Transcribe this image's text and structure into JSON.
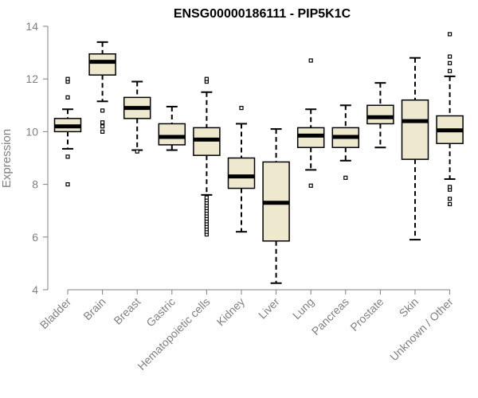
{
  "chart_data": {
    "type": "box",
    "title": "ENSG00000186111 - PIP5K1C",
    "xlabel": "",
    "ylabel": "Expression",
    "ylim": [
      4,
      14
    ],
    "yticks": [
      4,
      6,
      8,
      10,
      12,
      14
    ],
    "grid": false,
    "legend": "none",
    "box_fill": "#eee8cf",
    "box_stroke": "#000000",
    "median_color": "#000000",
    "axis_color": "#808080",
    "categories": [
      "Bladder",
      "Brain",
      "Breast",
      "Gastric",
      "Hematopoietic cells",
      "Kidney",
      "Liver",
      "Lung",
      "Pancreas",
      "Prostate",
      "Skin",
      "Unknown / Other"
    ],
    "boxes": [
      {
        "category": "Bladder",
        "whisker_low": 9.35,
        "q1": 10.0,
        "median": 10.2,
        "q3": 10.5,
        "whisker_high": 10.85,
        "outliers": [
          8.0,
          9.05,
          11.3,
          11.9,
          12.0
        ]
      },
      {
        "category": "Brain",
        "whisker_low": 11.15,
        "q1": 12.15,
        "median": 12.65,
        "q3": 12.95,
        "whisker_high": 13.4,
        "outliers": [
          10.0,
          10.2,
          10.35,
          10.8
        ]
      },
      {
        "category": "Breast",
        "whisker_low": 9.3,
        "q1": 10.5,
        "median": 10.9,
        "q3": 11.3,
        "whisker_high": 11.9,
        "outliers": [
          9.25
        ]
      },
      {
        "category": "Gastric",
        "whisker_low": 9.3,
        "q1": 9.5,
        "median": 9.8,
        "q3": 10.3,
        "whisker_high": 10.95,
        "outliers": []
      },
      {
        "category": "Hematopoietic cells",
        "whisker_low": 7.6,
        "q1": 9.1,
        "median": 9.7,
        "q3": 10.15,
        "whisker_high": 11.5,
        "outliers": [
          6.1,
          6.2,
          6.3,
          6.4,
          6.5,
          6.6,
          6.7,
          6.8,
          6.9,
          7.0,
          7.1,
          7.2,
          7.3,
          7.4,
          7.5,
          11.9,
          12.0
        ]
      },
      {
        "category": "Kidney",
        "whisker_low": 6.2,
        "q1": 7.85,
        "median": 8.3,
        "q3": 9.0,
        "whisker_high": 10.3,
        "outliers": [
          10.9
        ]
      },
      {
        "category": "Liver",
        "whisker_low": 4.25,
        "q1": 5.85,
        "median": 7.3,
        "q3": 8.85,
        "whisker_high": 10.1,
        "outliers": []
      },
      {
        "category": "Lung",
        "whisker_low": 8.55,
        "q1": 9.4,
        "median": 9.85,
        "q3": 10.15,
        "whisker_high": 10.85,
        "outliers": [
          7.95,
          12.7
        ]
      },
      {
        "category": "Pancreas",
        "whisker_low": 8.9,
        "q1": 9.4,
        "median": 9.8,
        "q3": 10.15,
        "whisker_high": 11.0,
        "outliers": [
          8.25
        ]
      },
      {
        "category": "Prostate",
        "whisker_low": 9.4,
        "q1": 10.3,
        "median": 10.55,
        "q3": 11.0,
        "whisker_high": 11.85,
        "outliers": []
      },
      {
        "category": "Skin",
        "whisker_low": 5.9,
        "q1": 8.95,
        "median": 10.4,
        "q3": 11.2,
        "whisker_high": 12.8,
        "outliers": []
      },
      {
        "category": "Unknown / Other",
        "whisker_low": 8.2,
        "q1": 9.55,
        "median": 10.05,
        "q3": 10.6,
        "whisker_high": 12.1,
        "outliers": [
          7.25,
          7.45,
          7.8,
          7.9,
          12.3,
          12.6,
          12.85,
          13.7
        ]
      }
    ]
  }
}
